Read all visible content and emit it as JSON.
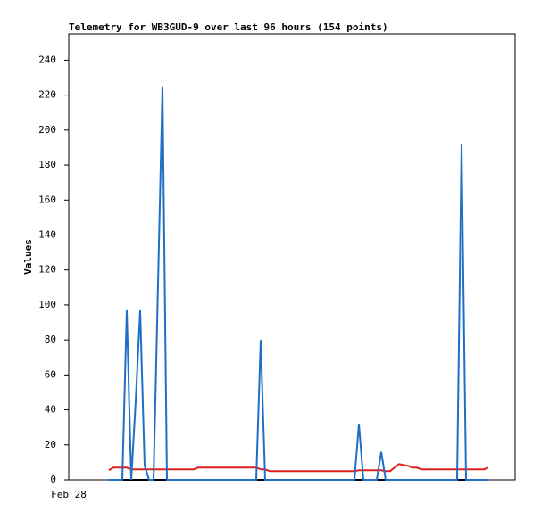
{
  "chart_data": {
    "type": "line",
    "title": "Telemetry for WB3GUD-9 over last 96 hours (154 points)",
    "y_label": "Values",
    "categories": [
      "Feb 28",
      null,
      null,
      null,
      null,
      null,
      null,
      null,
      null,
      null,
      null,
      null,
      null,
      null,
      null,
      null,
      null,
      null,
      null,
      null,
      null,
      null,
      null,
      null,
      null,
      null,
      null,
      null,
      null,
      null,
      null,
      null,
      null,
      null,
      null,
      null,
      null,
      null,
      null,
      null,
      null,
      null,
      null,
      null,
      null,
      null,
      null,
      null,
      null,
      null,
      null,
      null,
      null,
      null,
      null,
      null,
      null,
      null,
      null,
      null,
      null,
      null,
      null,
      null,
      null,
      null,
      null,
      null,
      null,
      null,
      null,
      null,
      null,
      null,
      null,
      null,
      null,
      null,
      null,
      null,
      null,
      null,
      null,
      null,
      null,
      null,
      null,
      null,
      null,
      null,
      null,
      null,
      null,
      null,
      null,
      null,
      null,
      null,
      null,
      null,
      null
    ],
    "series": [
      {
        "color": "#e0201b",
        "values": [
          null,
          null,
          null,
          null,
          null,
          null,
          null,
          null,
          null,
          5.5,
          7,
          7,
          7,
          7,
          6,
          6,
          6,
          6,
          6,
          6,
          6,
          6,
          6,
          6,
          6,
          6,
          6,
          6,
          6,
          7,
          7,
          7,
          7,
          7,
          7,
          7,
          7,
          7,
          7,
          7,
          7,
          7,
          7,
          6,
          6,
          5,
          5,
          5,
          5,
          5,
          5,
          5,
          5,
          5,
          5,
          5,
          5,
          5,
          5,
          5,
          5,
          5,
          5,
          5,
          5,
          5.5,
          5.5,
          5.5,
          5.5,
          5.5,
          5.5,
          5,
          5,
          7,
          9,
          8.5,
          8,
          7,
          7,
          6,
          6,
          6,
          6,
          6,
          6,
          6,
          6,
          6,
          6,
          6,
          6,
          6,
          6,
          6,
          7,
          null,
          null,
          null,
          null,
          null,
          null
        ]
      },
      {
        "color": "#000000",
        "values": [
          null,
          null,
          null,
          null,
          null,
          null,
          null,
          null,
          null,
          0,
          0,
          0,
          0,
          0,
          0,
          0,
          0,
          0,
          0,
          0,
          0,
          0,
          0,
          0,
          0,
          0,
          0,
          0,
          0,
          0,
          0,
          0,
          0,
          0,
          0,
          0,
          0,
          0,
          0,
          0,
          0,
          0,
          0,
          0,
          0,
          0,
          0,
          0,
          0,
          0,
          0,
          0,
          0,
          0,
          0,
          0,
          0,
          0,
          0,
          0,
          0,
          0,
          0,
          0,
          0,
          0,
          0,
          0,
          0,
          0,
          0,
          0,
          0,
          0,
          0,
          0,
          0,
          0,
          0,
          0,
          0,
          0,
          0,
          0,
          0,
          0,
          0,
          0,
          0,
          0,
          0,
          0,
          0,
          0,
          0,
          null,
          null,
          null,
          null,
          null,
          null
        ]
      },
      {
        "color": "#1f6fc6",
        "values": [
          null,
          null,
          null,
          null,
          null,
          null,
          null,
          null,
          null,
          0,
          0,
          0,
          0,
          97,
          0,
          45,
          97,
          8,
          0,
          0,
          112,
          225,
          0,
          0,
          0,
          0,
          0,
          0,
          0,
          0,
          0,
          0,
          0,
          0,
          0,
          0,
          0,
          0,
          0,
          0,
          0,
          0,
          0,
          80,
          0,
          0,
          0,
          0,
          0,
          0,
          0,
          0,
          0,
          0,
          0,
          0,
          0,
          0,
          0,
          0,
          0,
          0,
          0,
          0,
          0,
          32,
          0,
          0,
          0,
          0,
          16,
          0,
          0,
          0,
          0,
          0,
          0,
          0,
          0,
          0,
          0,
          0,
          0,
          0,
          0,
          0,
          0,
          0,
          192,
          0,
          0,
          0,
          0,
          0,
          0,
          null,
          null,
          null,
          null,
          null,
          null
        ]
      }
    ],
    "ylim": [
      0,
      255
    ],
    "yticks": [
      0,
      20,
      40,
      60,
      80,
      100,
      120,
      140,
      160,
      180,
      200,
      220,
      240
    ]
  }
}
